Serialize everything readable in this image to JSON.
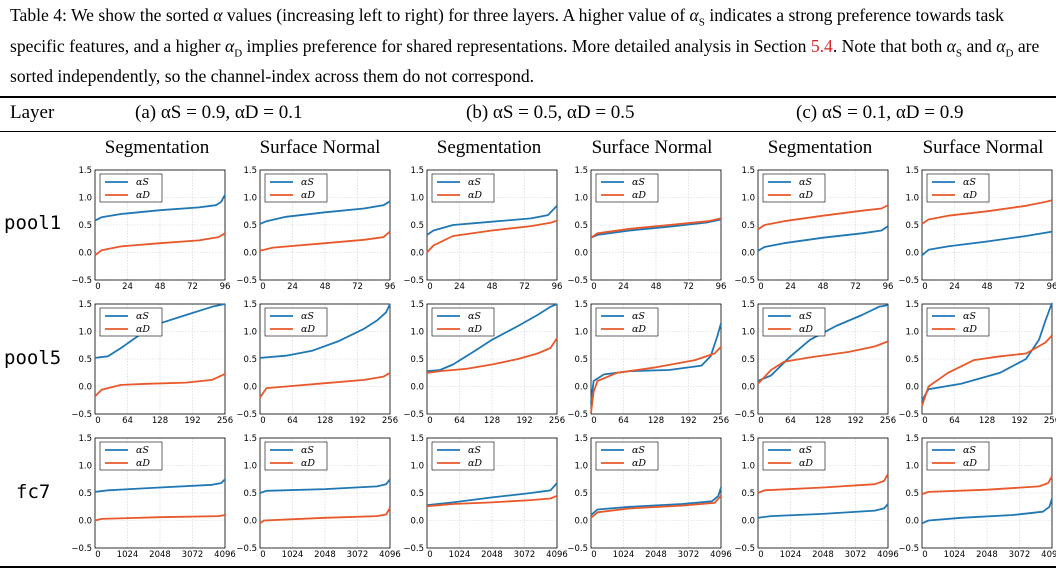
{
  "caption": {
    "part1": "Table 4: We show the sorted ",
    "alpha": "α",
    "part2": " values (increasing left to right) for three layers. A higher value of ",
    "alpha_s": "α",
    "sub_s": "S",
    "part3": " indicates a strong preference towards task specific features, and a higher ",
    "alpha_d": "α",
    "sub_d": "D",
    "part4": " implies preference for shared representations. More detailed analysis in Section ",
    "ref": "5.4",
    "part5": ". Note that both ",
    "alpha_s2": "α",
    "sub_s2": "S",
    "part6": " and ",
    "alpha_d2": "α",
    "sub_d2": "D",
    "part7": " are sorted independently, so the channel-index across them do not correspond."
  },
  "table": {
    "layer_header": "Layer",
    "groups": [
      {
        "label": "(a) αS = 0.9, αD = 0.1"
      },
      {
        "label": "(b) αS = 0.5, αD = 0.5"
      },
      {
        "label": "(c) αS = 0.1, αD = 0.9"
      }
    ],
    "subheaders": [
      "Segmentation",
      "Surface Normal",
      "Segmentation",
      "Surface Normal",
      "Segmentation",
      "Surface Normal"
    ],
    "rows": [
      "pool1",
      "pool5",
      "fc7"
    ]
  },
  "chart_data": {
    "type": "line",
    "ylim": [
      -0.5,
      1.5
    ],
    "yticks": [
      "1.5",
      "1.0",
      "0.5",
      "0.0",
      "−0.5"
    ],
    "xticks_by_row": [
      [
        "0",
        "24",
        "48",
        "72",
        "96"
      ],
      [
        "0",
        "64",
        "128",
        "192",
        "256"
      ],
      [
        "0",
        "1024",
        "2048",
        "3072",
        "4096"
      ]
    ],
    "xmax_by_row": [
      96,
      256,
      4096
    ],
    "legend": [
      "αS",
      "αD"
    ],
    "colors": {
      "alpha_s": "#1f77b4",
      "alpha_d": "#e8582a"
    },
    "panels": [
      {
        "row": "pool1",
        "col": 0,
        "s": [
          [
            0,
            0.58
          ],
          [
            0.05,
            0.64
          ],
          [
            0.2,
            0.7
          ],
          [
            0.5,
            0.77
          ],
          [
            0.8,
            0.82
          ],
          [
            0.93,
            0.86
          ],
          [
            0.97,
            0.92
          ],
          [
            1,
            1.05
          ]
        ],
        "d": [
          [
            0,
            -0.05
          ],
          [
            0.05,
            0.04
          ],
          [
            0.2,
            0.11
          ],
          [
            0.5,
            0.17
          ],
          [
            0.8,
            0.22
          ],
          [
            0.95,
            0.28
          ],
          [
            1,
            0.35
          ]
        ]
      },
      {
        "row": "pool1",
        "col": 1,
        "s": [
          [
            0,
            0.52
          ],
          [
            0.05,
            0.57
          ],
          [
            0.2,
            0.65
          ],
          [
            0.5,
            0.73
          ],
          [
            0.8,
            0.8
          ],
          [
            0.95,
            0.86
          ],
          [
            1,
            0.93
          ]
        ],
        "d": [
          [
            0,
            0.03
          ],
          [
            0.1,
            0.09
          ],
          [
            0.5,
            0.17
          ],
          [
            0.8,
            0.23
          ],
          [
            0.95,
            0.28
          ],
          [
            1,
            0.38
          ]
        ]
      },
      {
        "row": "pool1",
        "col": 2,
        "s": [
          [
            0,
            0.32
          ],
          [
            0.05,
            0.4
          ],
          [
            0.2,
            0.5
          ],
          [
            0.5,
            0.56
          ],
          [
            0.8,
            0.62
          ],
          [
            0.93,
            0.68
          ],
          [
            1,
            0.85
          ]
        ],
        "d": [
          [
            0,
            0.0
          ],
          [
            0.05,
            0.13
          ],
          [
            0.2,
            0.3
          ],
          [
            0.5,
            0.4
          ],
          [
            0.8,
            0.48
          ],
          [
            0.95,
            0.54
          ],
          [
            1,
            0.58
          ]
        ]
      },
      {
        "row": "pool1",
        "col": 3,
        "s": [
          [
            0,
            0.27
          ],
          [
            0.05,
            0.32
          ],
          [
            0.3,
            0.4
          ],
          [
            0.6,
            0.47
          ],
          [
            0.9,
            0.55
          ],
          [
            1,
            0.6
          ]
        ],
        "d": [
          [
            0,
            0.27
          ],
          [
            0.05,
            0.35
          ],
          [
            0.3,
            0.43
          ],
          [
            0.6,
            0.5
          ],
          [
            0.9,
            0.57
          ],
          [
            1,
            0.62
          ]
        ]
      },
      {
        "row": "pool1",
        "col": 4,
        "s": [
          [
            0,
            0.03
          ],
          [
            0.05,
            0.1
          ],
          [
            0.2,
            0.17
          ],
          [
            0.5,
            0.27
          ],
          [
            0.8,
            0.35
          ],
          [
            0.95,
            0.4
          ],
          [
            1,
            0.48
          ]
        ],
        "d": [
          [
            0,
            0.42
          ],
          [
            0.05,
            0.5
          ],
          [
            0.2,
            0.57
          ],
          [
            0.5,
            0.67
          ],
          [
            0.8,
            0.76
          ],
          [
            0.95,
            0.8
          ],
          [
            1,
            0.86
          ]
        ]
      },
      {
        "row": "pool1",
        "col": 5,
        "s": [
          [
            0,
            -0.05
          ],
          [
            0.05,
            0.05
          ],
          [
            0.2,
            0.11
          ],
          [
            0.5,
            0.2
          ],
          [
            0.8,
            0.3
          ],
          [
            0.95,
            0.36
          ],
          [
            1,
            0.38
          ]
        ],
        "d": [
          [
            0,
            0.52
          ],
          [
            0.05,
            0.6
          ],
          [
            0.2,
            0.67
          ],
          [
            0.5,
            0.75
          ],
          [
            0.8,
            0.85
          ],
          [
            0.95,
            0.92
          ],
          [
            1,
            0.95
          ]
        ]
      },
      {
        "row": "pool5",
        "col": 0,
        "s": [
          [
            0,
            0.52
          ],
          [
            0.1,
            0.55
          ],
          [
            0.2,
            0.7
          ],
          [
            0.35,
            0.95
          ],
          [
            0.5,
            1.15
          ],
          [
            0.7,
            1.3
          ],
          [
            0.9,
            1.45
          ],
          [
            1,
            1.5
          ]
        ],
        "d": [
          [
            0,
            -0.18
          ],
          [
            0.05,
            -0.06
          ],
          [
            0.2,
            0.03
          ],
          [
            0.4,
            0.05
          ],
          [
            0.7,
            0.07
          ],
          [
            0.9,
            0.12
          ],
          [
            1,
            0.23
          ]
        ]
      },
      {
        "row": "pool5",
        "col": 1,
        "s": [
          [
            0,
            0.52
          ],
          [
            0.2,
            0.56
          ],
          [
            0.4,
            0.65
          ],
          [
            0.6,
            0.82
          ],
          [
            0.8,
            1.05
          ],
          [
            0.9,
            1.2
          ],
          [
            0.97,
            1.35
          ],
          [
            1,
            1.5
          ]
        ],
        "d": [
          [
            0,
            -0.2
          ],
          [
            0.05,
            -0.03
          ],
          [
            0.2,
            0.0
          ],
          [
            0.5,
            0.06
          ],
          [
            0.8,
            0.12
          ],
          [
            0.95,
            0.18
          ],
          [
            1,
            0.25
          ]
        ]
      },
      {
        "row": "pool5",
        "col": 2,
        "s": [
          [
            0,
            0.28
          ],
          [
            0.1,
            0.3
          ],
          [
            0.2,
            0.4
          ],
          [
            0.35,
            0.62
          ],
          [
            0.5,
            0.85
          ],
          [
            0.7,
            1.1
          ],
          [
            0.85,
            1.3
          ],
          [
            0.95,
            1.45
          ],
          [
            1,
            1.5
          ]
        ],
        "d": [
          [
            0,
            0.25
          ],
          [
            0.1,
            0.28
          ],
          [
            0.3,
            0.32
          ],
          [
            0.5,
            0.4
          ],
          [
            0.7,
            0.5
          ],
          [
            0.85,
            0.6
          ],
          [
            0.95,
            0.7
          ],
          [
            1,
            0.88
          ]
        ]
      },
      {
        "row": "pool5",
        "col": 3,
        "s": [
          [
            0,
            -0.3
          ],
          [
            0.02,
            0.1
          ],
          [
            0.1,
            0.22
          ],
          [
            0.3,
            0.28
          ],
          [
            0.6,
            0.3
          ],
          [
            0.85,
            0.38
          ],
          [
            0.92,
            0.55
          ],
          [
            0.97,
            0.9
          ],
          [
            1,
            1.15
          ]
        ],
        "d": [
          [
            0,
            -0.48
          ],
          [
            0.02,
            -0.1
          ],
          [
            0.05,
            0.1
          ],
          [
            0.2,
            0.25
          ],
          [
            0.5,
            0.35
          ],
          [
            0.8,
            0.48
          ],
          [
            0.95,
            0.6
          ],
          [
            1,
            0.72
          ]
        ]
      },
      {
        "row": "pool5",
        "col": 4,
        "s": [
          [
            0,
            0.1
          ],
          [
            0.1,
            0.2
          ],
          [
            0.25,
            0.55
          ],
          [
            0.4,
            0.85
          ],
          [
            0.6,
            1.1
          ],
          [
            0.8,
            1.3
          ],
          [
            0.93,
            1.45
          ],
          [
            1,
            1.48
          ]
        ],
        "d": [
          [
            0,
            0.05
          ],
          [
            0.1,
            0.3
          ],
          [
            0.2,
            0.45
          ],
          [
            0.4,
            0.53
          ],
          [
            0.7,
            0.63
          ],
          [
            0.9,
            0.73
          ],
          [
            1,
            0.82
          ]
        ]
      },
      {
        "row": "pool5",
        "col": 5,
        "s": [
          [
            0,
            -0.25
          ],
          [
            0.05,
            -0.05
          ],
          [
            0.3,
            0.05
          ],
          [
            0.6,
            0.25
          ],
          [
            0.8,
            0.5
          ],
          [
            0.9,
            0.85
          ],
          [
            0.95,
            1.2
          ],
          [
            1,
            1.52
          ]
        ],
        "d": [
          [
            0,
            -0.35
          ],
          [
            0.05,
            0.0
          ],
          [
            0.2,
            0.25
          ],
          [
            0.4,
            0.48
          ],
          [
            0.6,
            0.55
          ],
          [
            0.8,
            0.6
          ],
          [
            0.95,
            0.8
          ],
          [
            1,
            0.93
          ]
        ]
      },
      {
        "row": "fc7",
        "col": 0,
        "s": [
          [
            0,
            0.52
          ],
          [
            0.1,
            0.55
          ],
          [
            0.5,
            0.6
          ],
          [
            0.9,
            0.65
          ],
          [
            0.97,
            0.68
          ],
          [
            1,
            0.75
          ]
        ],
        "d": [
          [
            0,
            0.0
          ],
          [
            0.05,
            0.03
          ],
          [
            0.5,
            0.06
          ],
          [
            0.95,
            0.08
          ],
          [
            1,
            0.1
          ]
        ]
      },
      {
        "row": "fc7",
        "col": 1,
        "s": [
          [
            0,
            0.5
          ],
          [
            0.05,
            0.54
          ],
          [
            0.5,
            0.57
          ],
          [
            0.9,
            0.62
          ],
          [
            0.97,
            0.66
          ],
          [
            1,
            0.75
          ]
        ],
        "d": [
          [
            0,
            -0.05
          ],
          [
            0.03,
            0.0
          ],
          [
            0.5,
            0.05
          ],
          [
            0.9,
            0.08
          ],
          [
            0.97,
            0.11
          ],
          [
            1,
            0.23
          ]
        ]
      },
      {
        "row": "fc7",
        "col": 2,
        "s": [
          [
            0,
            0.28
          ],
          [
            0.2,
            0.33
          ],
          [
            0.5,
            0.42
          ],
          [
            0.8,
            0.5
          ],
          [
            0.95,
            0.55
          ],
          [
            1,
            0.68
          ]
        ],
        "d": [
          [
            0,
            0.26
          ],
          [
            0.2,
            0.3
          ],
          [
            0.5,
            0.33
          ],
          [
            0.8,
            0.37
          ],
          [
            0.95,
            0.4
          ],
          [
            1,
            0.45
          ]
        ]
      },
      {
        "row": "fc7",
        "col": 3,
        "s": [
          [
            0,
            0.1
          ],
          [
            0.05,
            0.2
          ],
          [
            0.3,
            0.25
          ],
          [
            0.7,
            0.3
          ],
          [
            0.93,
            0.35
          ],
          [
            0.98,
            0.45
          ],
          [
            1,
            0.6
          ]
        ],
        "d": [
          [
            0,
            0.05
          ],
          [
            0.05,
            0.15
          ],
          [
            0.3,
            0.22
          ],
          [
            0.7,
            0.27
          ],
          [
            0.95,
            0.32
          ],
          [
            1,
            0.45
          ]
        ]
      },
      {
        "row": "fc7",
        "col": 4,
        "s": [
          [
            0,
            0.05
          ],
          [
            0.1,
            0.08
          ],
          [
            0.5,
            0.12
          ],
          [
            0.9,
            0.18
          ],
          [
            0.97,
            0.22
          ],
          [
            1,
            0.3
          ]
        ],
        "d": [
          [
            0,
            0.5
          ],
          [
            0.05,
            0.55
          ],
          [
            0.5,
            0.6
          ],
          [
            0.9,
            0.66
          ],
          [
            0.97,
            0.72
          ],
          [
            1,
            0.85
          ]
        ]
      },
      {
        "row": "fc7",
        "col": 5,
        "s": [
          [
            0,
            -0.05
          ],
          [
            0.05,
            0.0
          ],
          [
            0.3,
            0.05
          ],
          [
            0.7,
            0.1
          ],
          [
            0.93,
            0.16
          ],
          [
            0.98,
            0.25
          ],
          [
            1,
            0.4
          ]
        ],
        "d": [
          [
            0,
            0.48
          ],
          [
            0.05,
            0.52
          ],
          [
            0.5,
            0.56
          ],
          [
            0.9,
            0.62
          ],
          [
            0.97,
            0.68
          ],
          [
            1,
            0.8
          ]
        ]
      }
    ]
  }
}
